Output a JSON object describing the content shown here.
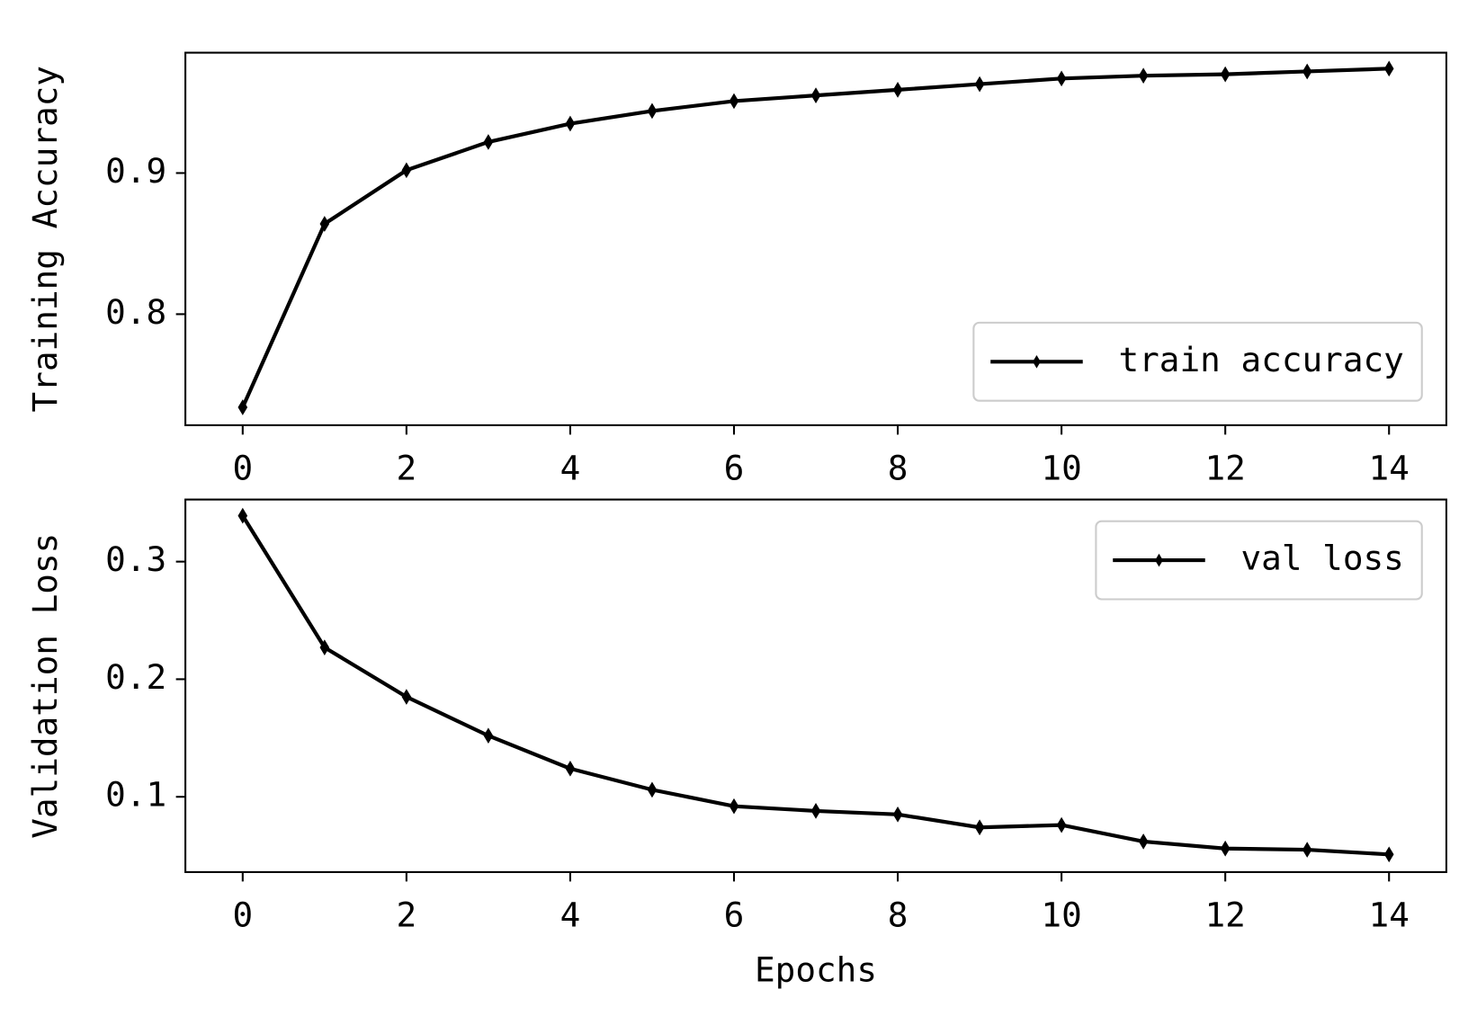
{
  "chart_data": [
    {
      "type": "line",
      "ylabel": "Training Accuracy",
      "x": [
        0,
        1,
        2,
        3,
        4,
        5,
        6,
        7,
        8,
        9,
        10,
        11,
        12,
        13,
        14
      ],
      "series": [
        {
          "name": "train accuracy",
          "color": "#000000",
          "values": [
            0.734,
            0.864,
            0.902,
            0.922,
            0.935,
            0.944,
            0.951,
            0.955,
            0.959,
            0.963,
            0.967,
            0.969,
            0.97,
            0.972,
            0.974
          ]
        }
      ],
      "xlim": [
        -0.7,
        14.7
      ],
      "ylim": [
        0.7213,
        0.9853
      ],
      "xticks": [
        0,
        2,
        4,
        6,
        8,
        10,
        12,
        14
      ],
      "yticks": [
        0.8,
        0.9
      ],
      "legend": "lower right"
    },
    {
      "type": "line",
      "ylabel": "Validation Loss",
      "xlabel": "Epochs",
      "x": [
        0,
        1,
        2,
        3,
        4,
        5,
        6,
        7,
        8,
        9,
        10,
        11,
        12,
        13,
        14
      ],
      "series": [
        {
          "name": "val loss",
          "color": "#000000",
          "values": [
            0.339,
            0.227,
            0.185,
            0.152,
            0.124,
            0.106,
            0.092,
            0.088,
            0.085,
            0.074,
            0.076,
            0.062,
            0.056,
            0.055,
            0.051
          ]
        }
      ],
      "xlim": [
        -0.7,
        14.7
      ],
      "ylim": [
        0.036,
        0.3528
      ],
      "xticks": [
        0,
        2,
        4,
        6,
        8,
        10,
        12,
        14
      ],
      "yticks": [
        0.1,
        0.2,
        0.3
      ],
      "legend": "upper right"
    }
  ]
}
